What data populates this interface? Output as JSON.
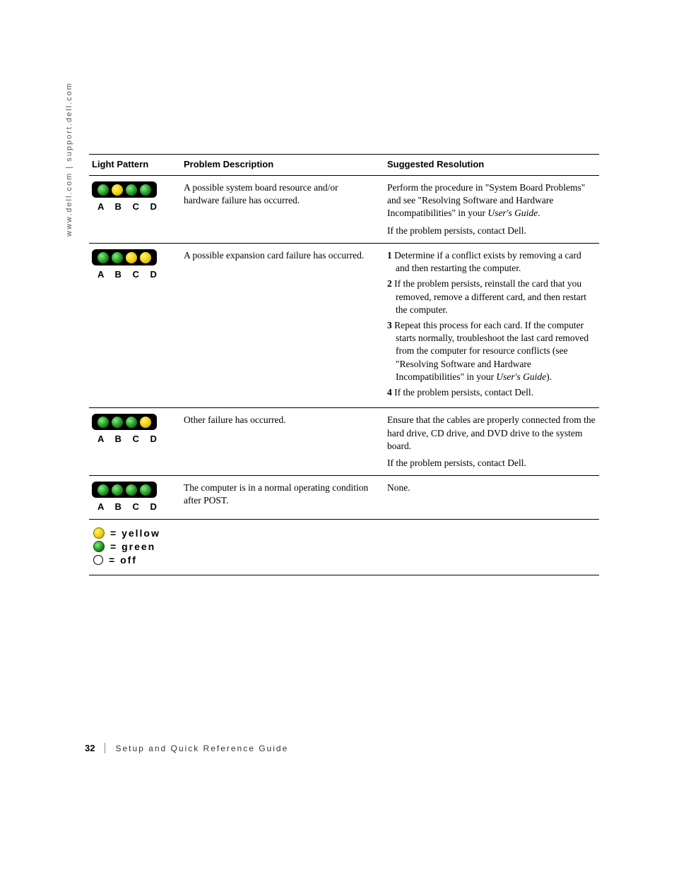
{
  "side_text": "www.dell.com | support.dell.com",
  "headers": {
    "pattern": "Light Pattern",
    "desc": "Problem Description",
    "res": "Suggested Resolution"
  },
  "led_row_label": "A B C D",
  "rows": [
    {
      "leds": [
        "green",
        "yellow",
        "green",
        "green"
      ],
      "desc": "A possible system board resource and/or hardware failure has occurred.",
      "res_paras": [
        "Perform the procedure in \"System Board Problems\" and see \"Resolving Software and Hardware Incompatibilities\" in your <i>User's Guide</i>.",
        "If the problem persists, contact Dell."
      ]
    },
    {
      "leds": [
        "green",
        "green",
        "yellow",
        "yellow"
      ],
      "desc": "A possible expansion card failure has occurred.",
      "res_steps": [
        "Determine if a conflict exists by removing a card and then restarting the computer.",
        "If the problem persists, reinstall the card that you removed, remove a different card, and then restart the computer.",
        "Repeat this process for each card. If the computer starts normally, troubleshoot the last card removed from the computer for resource conflicts (see \"Resolving Software and Hardware Incompatibilities\" in your <i>User's Guide</i>).",
        "If the problem persists, contact Dell."
      ]
    },
    {
      "leds": [
        "green",
        "green",
        "green",
        "yellow"
      ],
      "desc": "Other failure has occurred.",
      "res_paras": [
        "Ensure that the cables are properly connected from the hard drive, CD drive, and DVD drive to the system board.",
        "If the problem persists, contact Dell."
      ]
    },
    {
      "leds": [
        "green",
        "green",
        "green",
        "green"
      ],
      "desc": "The computer is in a normal operating condition after POST.",
      "res_paras": [
        "None."
      ]
    }
  ],
  "legend": {
    "yellow": "= yellow",
    "green": "= green",
    "off": "= off"
  },
  "footer": {
    "page": "32",
    "title": "Setup and Quick Reference Guide"
  },
  "colors": {
    "green": "#1e8a1e",
    "yellow": "#f0d000",
    "box_bg": "#000000",
    "text": "#000000"
  }
}
